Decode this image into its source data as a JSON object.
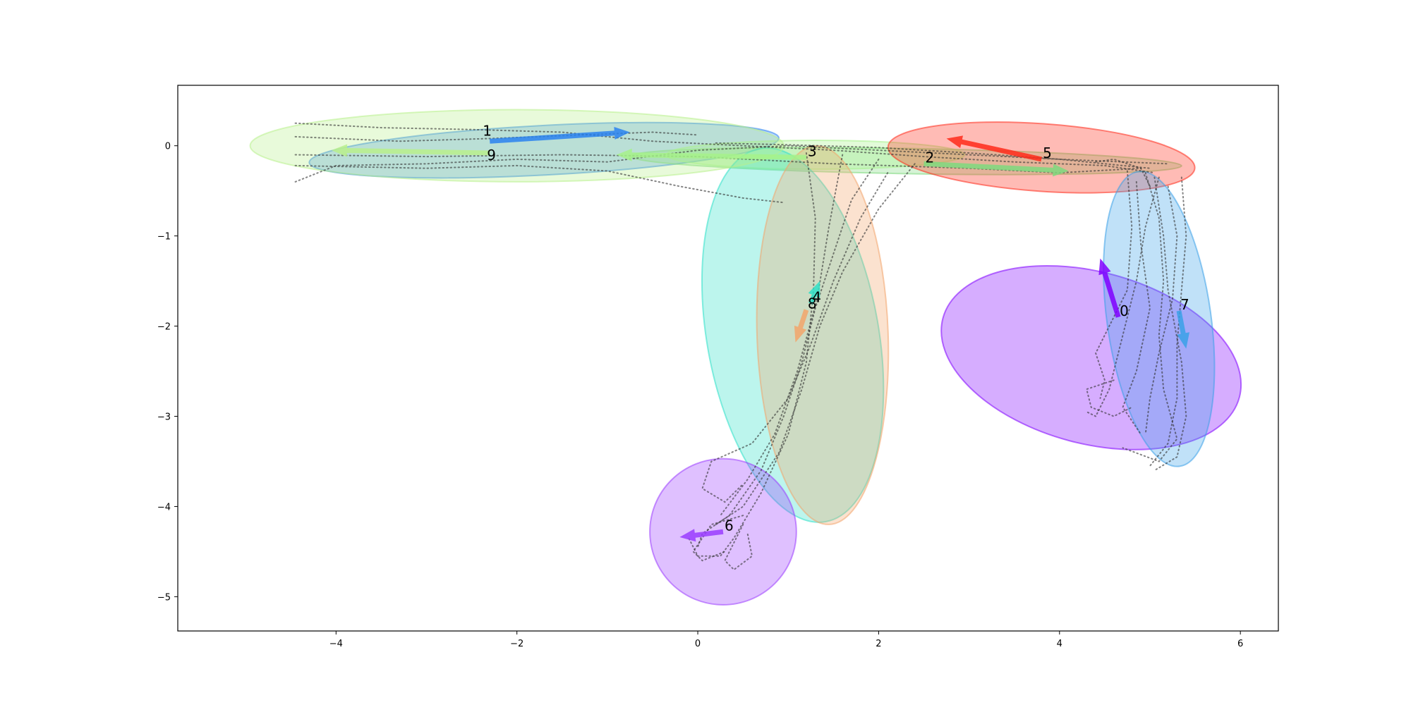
{
  "chart_data": {
    "type": "scatter",
    "title": "",
    "xlabel": "",
    "ylabel": "",
    "xlim": [
      -5.75,
      6.42
    ],
    "ylim": [
      -5.38,
      0.67
    ],
    "grid": false,
    "x_ticks": [
      -4,
      -2,
      0,
      2,
      4,
      6
    ],
    "x_tick_labels": [
      "−4",
      "−2",
      "0",
      "2",
      "4",
      "6"
    ],
    "y_ticks": [
      0,
      -1,
      -2,
      -3,
      -4,
      -5
    ],
    "y_tick_labels": [
      "0",
      "−1",
      "−2",
      "−3",
      "−4",
      "−5"
    ],
    "clusters": [
      {
        "label": "0",
        "color": "#8000ff",
        "center": [
          4.35,
          -2.35
        ],
        "width": 1.9,
        "height": 3.4,
        "angle": 75,
        "arrow": [
          [
            4.65,
            -1.9
          ],
          [
            4.45,
            -1.25
          ]
        ]
      },
      {
        "label": "1",
        "color": "#2a82f0",
        "center": [
          -1.7,
          -0.05
        ],
        "width": 5.2,
        "height": 0.55,
        "angle": 3,
        "arrow": [
          [
            -2.3,
            0.05
          ],
          [
            -0.75,
            0.15
          ]
        ]
      },
      {
        "label": "2",
        "color": "#7ed97e",
        "center": [
          2.3,
          -0.17
        ],
        "width": 6.1,
        "height": 0.28,
        "angle": -1,
        "arrow": [
          [
            2.5,
            -0.2
          ],
          [
            4.1,
            -0.28
          ]
        ]
      },
      {
        "label": "3",
        "color": "#a6f28a",
        "center": [
          1.3,
          -0.1
        ],
        "width": 3.3,
        "height": 0.32,
        "angle": 0,
        "arrow": [
          [
            1.2,
            -0.13
          ],
          [
            -0.9,
            -0.1
          ]
        ]
      },
      {
        "label": "4",
        "color": "#2ee0c8",
        "center": [
          1.05,
          -2.1
        ],
        "width": 1.9,
        "height": 4.2,
        "angle": 10,
        "arrow": [
          [
            1.25,
            -1.75
          ],
          [
            1.35,
            -1.5
          ]
        ]
      },
      {
        "label": "5",
        "color": "#ff2a1a",
        "center": [
          3.8,
          -0.13
        ],
        "width": 3.4,
        "height": 0.75,
        "angle": -4,
        "arrow": [
          [
            3.8,
            -0.15
          ],
          [
            2.75,
            0.08
          ]
        ]
      },
      {
        "label": "6",
        "color": "#9a3cff",
        "center": [
          0.28,
          -4.28
        ],
        "width": 1.62,
        "height": 1.62,
        "angle": 0,
        "arrow": [
          [
            0.28,
            -4.28
          ],
          [
            -0.2,
            -4.34
          ]
        ]
      },
      {
        "label": "7",
        "color": "#3aa1e8",
        "center": [
          5.1,
          -1.92
        ],
        "width": 1.15,
        "height": 3.3,
        "angle": 8,
        "arrow": [
          [
            5.32,
            -1.83
          ],
          [
            5.4,
            -2.25
          ]
        ]
      },
      {
        "label": "8",
        "color": "#f2a46b",
        "center": [
          1.38,
          -2.1
        ],
        "width": 1.45,
        "height": 4.2,
        "angle": 2,
        "arrow": [
          [
            1.2,
            -1.82
          ],
          [
            1.08,
            -2.18
          ]
        ]
      },
      {
        "label": "9",
        "color": "#b8f08c",
        "center": [
          -2.0,
          0.0
        ],
        "width": 5.9,
        "height": 0.8,
        "angle": 0,
        "arrow": [
          [
            -2.3,
            -0.08
          ],
          [
            -4.05,
            -0.05
          ]
        ]
      }
    ],
    "trajectories": [
      [
        [
          -4.45,
          0.25
        ],
        [
          -3.5,
          0.2
        ],
        [
          -2.5,
          0.18
        ],
        [
          -1.5,
          0.15
        ],
        [
          -0.5,
          0.05
        ],
        [
          0.5,
          0.0
        ],
        [
          1.5,
          -0.05
        ],
        [
          2.5,
          -0.12
        ],
        [
          3.5,
          -0.18
        ],
        [
          4.5,
          -0.22
        ],
        [
          5.05,
          -0.3
        ]
      ],
      [
        [
          -4.45,
          0.1
        ],
        [
          -3.3,
          0.05
        ],
        [
          -2.3,
          0.08
        ],
        [
          -1.3,
          0.12
        ],
        [
          -0.5,
          0.15
        ],
        [
          0.0,
          0.12
        ]
      ],
      [
        [
          -4.45,
          -0.1
        ],
        [
          -3.0,
          -0.12
        ],
        [
          -1.5,
          -0.1
        ],
        [
          0.0,
          -0.12
        ],
        [
          1.5,
          -0.2
        ],
        [
          3.0,
          -0.25
        ],
        [
          4.0,
          -0.3
        ],
        [
          4.9,
          -0.25
        ]
      ],
      [
        [
          -4.45,
          -0.22
        ],
        [
          -3.0,
          -0.25
        ],
        [
          -2.0,
          -0.22
        ],
        [
          -1.0,
          -0.28
        ],
        [
          -0.2,
          -0.45
        ],
        [
          0.5,
          -0.58
        ],
        [
          0.95,
          -0.63
        ]
      ],
      [
        [
          -4.45,
          -0.4
        ],
        [
          -4.0,
          -0.22
        ],
        [
          -3.0,
          -0.2
        ],
        [
          -2.0,
          -0.15
        ],
        [
          -1.0,
          -0.18
        ],
        [
          0.0,
          -0.05
        ],
        [
          1.0,
          0.0
        ],
        [
          2.0,
          -0.05
        ],
        [
          3.0,
          -0.1
        ],
        [
          4.0,
          -0.15
        ],
        [
          5.0,
          -0.25
        ]
      ],
      [
        [
          0.2,
          0.03
        ],
        [
          1.0,
          0.01
        ],
        [
          2.0,
          -0.02
        ],
        [
          3.0,
          -0.08
        ],
        [
          4.0,
          -0.15
        ],
        [
          5.2,
          -0.2
        ]
      ],
      [
        [
          4.4,
          -0.18
        ],
        [
          4.6,
          -0.15
        ],
        [
          4.9,
          -0.25
        ],
        [
          5.0,
          -0.45
        ]
      ],
      [
        [
          2.0,
          -0.15
        ],
        [
          1.7,
          -0.6
        ],
        [
          1.5,
          -1.2
        ],
        [
          1.3,
          -1.8
        ],
        [
          1.15,
          -2.4
        ],
        [
          0.95,
          -3.0
        ],
        [
          0.7,
          -3.6
        ],
        [
          0.35,
          -4.1
        ],
        [
          0.05,
          -4.3
        ],
        [
          0.0,
          -4.45
        ]
      ],
      [
        [
          2.1,
          -0.3
        ],
        [
          1.8,
          -0.8
        ],
        [
          1.5,
          -1.5
        ],
        [
          1.25,
          -2.2
        ],
        [
          1.0,
          -2.8
        ],
        [
          0.6,
          -3.3
        ],
        [
          0.15,
          -3.5
        ],
        [
          0.05,
          -3.8
        ],
        [
          0.3,
          -3.95
        ],
        [
          0.5,
          -3.75
        ]
      ],
      [
        [
          2.4,
          -0.2
        ],
        [
          2.0,
          -0.7
        ],
        [
          1.6,
          -1.4
        ],
        [
          1.35,
          -2.0
        ],
        [
          1.15,
          -2.7
        ],
        [
          0.9,
          -3.4
        ],
        [
          0.5,
          -4.0
        ],
        [
          0.2,
          -4.2
        ]
      ],
      [
        [
          1.2,
          -0.08
        ],
        [
          1.3,
          -0.8
        ],
        [
          1.28,
          -1.6
        ],
        [
          1.2,
          -2.4
        ],
        [
          1.0,
          -3.2
        ],
        [
          0.7,
          -3.85
        ],
        [
          0.4,
          -4.35
        ],
        [
          0.25,
          -4.55
        ],
        [
          0.0,
          -4.55
        ],
        [
          -0.1,
          -4.35
        ]
      ],
      [
        [
          1.6,
          -0.1
        ],
        [
          1.45,
          -0.9
        ],
        [
          1.32,
          -1.7
        ],
        [
          1.1,
          -2.5
        ],
        [
          0.85,
          -3.2
        ],
        [
          0.55,
          -3.7
        ],
        [
          0.25,
          -4.1
        ]
      ],
      [
        [
          0.5,
          -4.2
        ],
        [
          0.3,
          -4.6
        ],
        [
          0.4,
          -4.7
        ],
        [
          0.6,
          -4.55
        ],
        [
          0.55,
          -4.3
        ]
      ],
      [
        [
          0.5,
          -4.1
        ],
        [
          0.15,
          -4.2
        ],
        [
          -0.05,
          -4.5
        ],
        [
          0.05,
          -4.6
        ],
        [
          0.3,
          -4.5
        ]
      ],
      [
        [
          5.1,
          -0.35
        ],
        [
          4.95,
          -0.9
        ],
        [
          4.85,
          -1.5
        ],
        [
          4.7,
          -2.1
        ],
        [
          4.55,
          -2.7
        ],
        [
          4.4,
          -3.0
        ],
        [
          4.3,
          -2.95
        ]
      ],
      [
        [
          5.2,
          -0.45
        ],
        [
          5.3,
          -1.0
        ],
        [
          5.25,
          -1.7
        ],
        [
          5.1,
          -2.3
        ],
        [
          5.0,
          -2.8
        ],
        [
          4.95,
          -3.2
        ]
      ],
      [
        [
          5.35,
          -0.35
        ],
        [
          5.4,
          -1.0
        ],
        [
          5.35,
          -1.6
        ],
        [
          5.3,
          -2.2
        ],
        [
          5.3,
          -2.8
        ],
        [
          5.2,
          -3.3
        ],
        [
          5.0,
          -3.55
        ]
      ],
      [
        [
          4.95,
          -0.3
        ],
        [
          5.1,
          -0.8
        ],
        [
          5.15,
          -1.5
        ],
        [
          5.1,
          -2.1
        ],
        [
          5.15,
          -2.7
        ],
        [
          5.3,
          -3.25
        ],
        [
          5.1,
          -3.5
        ],
        [
          4.7,
          -3.35
        ]
      ],
      [
        [
          4.75,
          -0.28
        ],
        [
          4.8,
          -0.9
        ],
        [
          4.75,
          -1.6
        ],
        [
          4.55,
          -2.0
        ],
        [
          4.4,
          -2.3
        ],
        [
          4.5,
          -2.6
        ],
        [
          4.45,
          -2.8
        ]
      ],
      [
        [
          5.05,
          -0.35
        ],
        [
          5.15,
          -1.0
        ],
        [
          5.2,
          -1.6
        ],
        [
          5.35,
          -2.4
        ],
        [
          5.4,
          -3.0
        ],
        [
          5.3,
          -3.45
        ],
        [
          5.05,
          -3.6
        ]
      ],
      [
        [
          4.85,
          -0.4
        ],
        [
          4.9,
          -1.1
        ],
        [
          5.0,
          -1.8
        ],
        [
          4.85,
          -2.5
        ],
        [
          4.7,
          -2.9
        ],
        [
          4.9,
          -3.2
        ]
      ],
      [
        [
          4.6,
          -2.6
        ],
        [
          4.3,
          -2.7
        ],
        [
          4.35,
          -2.9
        ],
        [
          4.6,
          -3.0
        ],
        [
          4.8,
          -2.9
        ]
      ]
    ]
  }
}
